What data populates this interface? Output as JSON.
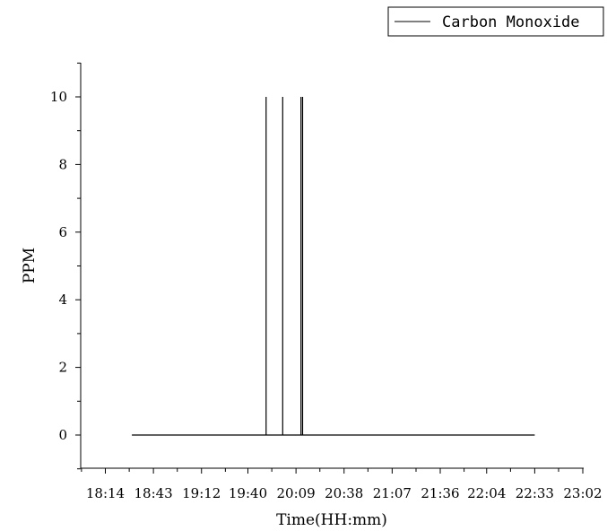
{
  "chart_data": {
    "type": "line",
    "title": "",
    "xlabel": "Time(HH:mm)",
    "ylabel": "PPM",
    "x_ticks": [
      "18:14",
      "18:43",
      "19:12",
      "19:40",
      "20:09",
      "20:38",
      "21:07",
      "21:36",
      "22:04",
      "22:33",
      "23:02"
    ],
    "y_ticks": [
      "0",
      "2",
      "4",
      "6",
      "8",
      "10"
    ],
    "xlim": [
      "18:00",
      "23:02"
    ],
    "ylim": [
      -1,
      11
    ],
    "grid": false,
    "legend_position": "top-right",
    "series": [
      {
        "name": "Carbon Monoxide",
        "color": "#000000",
        "points": [
          [
            "18:30",
            0
          ],
          [
            "19:51",
            0
          ],
          [
            "19:51",
            10
          ],
          [
            "19:51",
            0
          ],
          [
            "20:01",
            0
          ],
          [
            "20:01",
            10
          ],
          [
            "20:01",
            0
          ],
          [
            "20:12",
            0
          ],
          [
            "20:12",
            10
          ],
          [
            "20:12",
            0
          ],
          [
            "20:13",
            0
          ],
          [
            "20:13",
            10
          ],
          [
            "20:13",
            0
          ],
          [
            "22:33",
            0
          ]
        ]
      }
    ]
  }
}
